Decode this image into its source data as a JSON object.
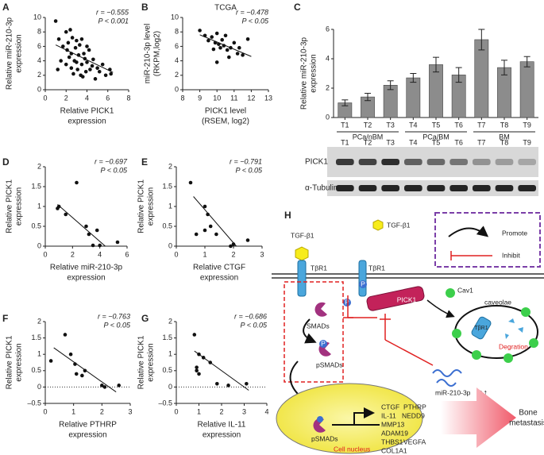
{
  "chart_data": [
    {
      "type": "scatter",
      "panel_label": "A",
      "x": [
        1,
        1.3,
        1.5,
        1.7,
        2,
        2,
        2.1,
        2.2,
        2.3,
        2.4,
        2.5,
        2.5,
        2.6,
        2.7,
        2.8,
        2.9,
        3,
        3,
        3.1,
        3.2,
        3.3,
        3.4,
        3.5,
        3.5,
        3.7,
        3.8,
        3.9,
        4,
        4,
        4.2,
        4.3,
        4.5,
        4.6,
        4.8,
        5,
        5.2,
        5.5,
        5.8,
        6.2,
        6.3,
        1.2,
        3.6
      ],
      "values": [
        9.5,
        7,
        4,
        6,
        8,
        3.5,
        5.5,
        6.5,
        4.5,
        8.3,
        3,
        5,
        7.2,
        2.2,
        4,
        5.8,
        6.8,
        3.8,
        2.8,
        4.8,
        6.2,
        2,
        3.5,
        7,
        5,
        4.3,
        2.5,
        6,
        3.8,
        5.5,
        2.8,
        3.3,
        4.2,
        1.5,
        3,
        2.5,
        3.5,
        2,
        2.8,
        2.2,
        2.8,
        1.8
      ],
      "color": "#111111",
      "xlim": [
        0,
        8
      ],
      "xticks": [
        0,
        2,
        4,
        6,
        8
      ],
      "ylim": [
        0,
        10
      ],
      "yticks": [
        0,
        2,
        4,
        6,
        8,
        10
      ],
      "x_label": [
        "Relative PICK1",
        "expression"
      ],
      "y_label": [
        "Relative miR-210-3p",
        "expression"
      ],
      "annotations": [
        "r = −0.555",
        "P < 0.001"
      ],
      "fit_line": {
        "x": [
          1,
          6.5
        ],
        "values": [
          6.2,
          2.4
        ]
      }
    },
    {
      "type": "scatter",
      "panel_label": "B",
      "title": "TCGA",
      "x": [
        9,
        9.3,
        9.5,
        9.7,
        9.9,
        10,
        10.1,
        10.2,
        10.3,
        10.4,
        10.5,
        10.6,
        10.7,
        10.8,
        11,
        11.2,
        11.3,
        11.5,
        11.8,
        10,
        9.8
      ],
      "values": [
        8.2,
        7.5,
        6.8,
        7.3,
        6.5,
        7.8,
        6.3,
        5.8,
        6.9,
        6.1,
        7.5,
        5.5,
        4.5,
        5.8,
        6.5,
        5,
        5.8,
        4.8,
        7,
        3.8,
        5.6
      ],
      "color": "#111111",
      "xlim": [
        8,
        13
      ],
      "xticks": [
        8,
        9,
        10,
        11,
        12,
        13
      ],
      "ylim": [
        0,
        10
      ],
      "yticks": [
        0,
        2,
        4,
        6,
        8,
        10
      ],
      "x_label": [
        "PICK1 level",
        "(RSEM, log2)"
      ],
      "y_label": [
        "miR-210-3p level",
        "(RKPM,log2)"
      ],
      "annotations": [
        "r = −0.478",
        "P < 0.05"
      ],
      "fit_line": {
        "x": [
          9,
          12
        ],
        "values": [
          7.6,
          4.6
        ]
      }
    },
    {
      "type": "bar",
      "panel_label": "C",
      "categories": [
        "T1",
        "T2",
        "T3",
        "T4",
        "T5",
        "T6",
        "T7",
        "T8",
        "T9"
      ],
      "values": [
        1.0,
        1.4,
        2.2,
        2.7,
        3.6,
        2.9,
        5.3,
        3.4,
        3.8
      ],
      "errors": [
        0.2,
        0.25,
        0.3,
        0.3,
        0.5,
        0.5,
        0.7,
        0.5,
        0.35
      ],
      "color": "#8c8c8c",
      "ylim": [
        0,
        6
      ],
      "yticks": [
        0,
        2,
        4,
        6
      ],
      "y_label": [
        "Relative miR-210-3p",
        "expression"
      ],
      "groups": [
        "PCa/nBM",
        "PCa/BM",
        "BM"
      ],
      "blot": {
        "lanes": [
          "T1",
          "T2",
          "T3",
          "T4",
          "T5",
          "T6",
          "T7",
          "T8",
          "T9"
        ],
        "rows": [
          "PICK1",
          "α-Tubulin"
        ]
      }
    },
    {
      "type": "scatter",
      "panel_label": "D",
      "x": [
        1,
        1.5,
        2.3,
        3,
        3.2,
        3.5,
        3.8,
        4,
        5.3,
        0.9
      ],
      "values": [
        1,
        0.8,
        1.6,
        0.5,
        0.3,
        0.02,
        0.4,
        0.02,
        0.1,
        0.95
      ],
      "color": "#111111",
      "xlim": [
        0,
        6
      ],
      "xticks": [
        0,
        2,
        4,
        6
      ],
      "ylim": [
        0,
        2
      ],
      "yticks": [
        0,
        0.5,
        1,
        1.5,
        2
      ],
      "x_label": [
        "Relative miR-210-3p",
        "expression"
      ],
      "y_label": [
        "Relative PICK1",
        "expression"
      ],
      "annotations": [
        "r = −0.697",
        "P < 0.05"
      ],
      "fit_line": {
        "x": [
          0.9,
          4.4
        ],
        "values": [
          1.05,
          0
        ]
      }
    },
    {
      "type": "scatter",
      "panel_label": "E",
      "x": [
        0.5,
        0.7,
        1,
        1.1,
        1.2,
        1.4,
        1.9,
        2,
        2.5,
        1
      ],
      "values": [
        1.6,
        0.3,
        1,
        0.8,
        0.5,
        0.3,
        0,
        0.05,
        0.15,
        0.4
      ],
      "color": "#111111",
      "xlim": [
        0,
        3
      ],
      "xticks": [
        0,
        1,
        2,
        3
      ],
      "ylim": [
        0,
        2
      ],
      "yticks": [
        0,
        0.5,
        1,
        1.5,
        2
      ],
      "x_label": [
        "Relative CTGF",
        "expression"
      ],
      "y_label": [
        "Relative PICK1",
        "expression"
      ],
      "annotations": [
        "r = −0.791",
        "P < 0.05"
      ],
      "fit_line": {
        "x": [
          0.6,
          2.1
        ],
        "values": [
          1.25,
          0
        ]
      }
    },
    {
      "type": "scatter",
      "panel_label": "F",
      "x": [
        0.2,
        0.7,
        0.9,
        1.1,
        1.3,
        1.4,
        2,
        2.1,
        2.6,
        1.05
      ],
      "values": [
        0.8,
        1.6,
        1,
        0.4,
        0.35,
        0.5,
        0.05,
        0,
        0.05,
        0.7
      ],
      "color": "#111111",
      "xlim": [
        0,
        3
      ],
      "xticks": [
        0,
        1,
        2,
        3
      ],
      "ylim": [
        -0.5,
        2
      ],
      "yticks": [
        {
          "value": -0.5,
          "label": "–0.5"
        },
        0,
        0.5,
        1,
        1.5,
        2
      ],
      "x_label": [
        "Relative PTHRP",
        "expression"
      ],
      "y_label": [
        "Relative PICK1",
        "expression"
      ],
      "annotations": [
        "r = −0.763",
        "P < 0.05"
      ],
      "fit_line": {
        "x": [
          0.3,
          2.5
        ],
        "values": [
          1.2,
          -0.15
        ]
      },
      "reference_line": {
        "y": 0,
        "style": "dotted"
      }
    },
    {
      "type": "scatter",
      "panel_label": "G",
      "x": [
        0.8,
        0.9,
        1,
        1,
        1.2,
        1.5,
        1.8,
        2.3,
        3.1,
        0.9
      ],
      "values": [
        1.6,
        0.5,
        1,
        0.4,
        0.9,
        0.75,
        0.1,
        0.05,
        0.1,
        0.6
      ],
      "color": "#111111",
      "xlim": [
        0,
        4
      ],
      "xticks": [
        0,
        1,
        2,
        3,
        4
      ],
      "ylim": [
        -0.5,
        2
      ],
      "yticks": [
        {
          "value": -0.5,
          "label": "–0.5"
        },
        0,
        0.5,
        1,
        1.5,
        2
      ],
      "x_label": [
        "Relative IL-11",
        "expression"
      ],
      "y_label": [
        "Relative PICK1",
        "expression"
      ],
      "annotations": [
        "r = −0.686",
        "P < 0.05"
      ],
      "fit_line": {
        "x": [
          0.8,
          3.2
        ],
        "values": [
          1.1,
          -0.1
        ]
      },
      "reference_line": {
        "y": 0,
        "style": "dotted"
      }
    }
  ],
  "diagram": {
    "panel_label": "H",
    "legend": {
      "ligand": "TGF-β1",
      "promote": "Promote",
      "inhibit": "Inhibit"
    },
    "ligand": "TGF-β1",
    "receptors": [
      "TβR1",
      "TβR1"
    ],
    "phospho": [
      "P",
      "P",
      "P"
    ],
    "smads": "SMADs",
    "psmads": "pSMADs",
    "pick1": "PICK1",
    "cav1": "Cav1",
    "caveolae": "caveolae",
    "internal_receptor": "TβR1",
    "degradation": "Degration",
    "mirna": "miR-210-3p",
    "mirna_trend": "↑↑",
    "nucleus_psmads": "pSMADs",
    "nucleus": "Cell nucleus",
    "genes": [
      [
        "CTGF",
        "PTHRP"
      ],
      [
        "IL-11",
        "NEDD9"
      ],
      [
        "MMP13"
      ],
      [
        "ADAM19"
      ],
      [
        "THBS1",
        "VEGFA"
      ],
      [
        "COL1A1"
      ]
    ],
    "outcome": [
      "Bone",
      "metastasis"
    ]
  }
}
